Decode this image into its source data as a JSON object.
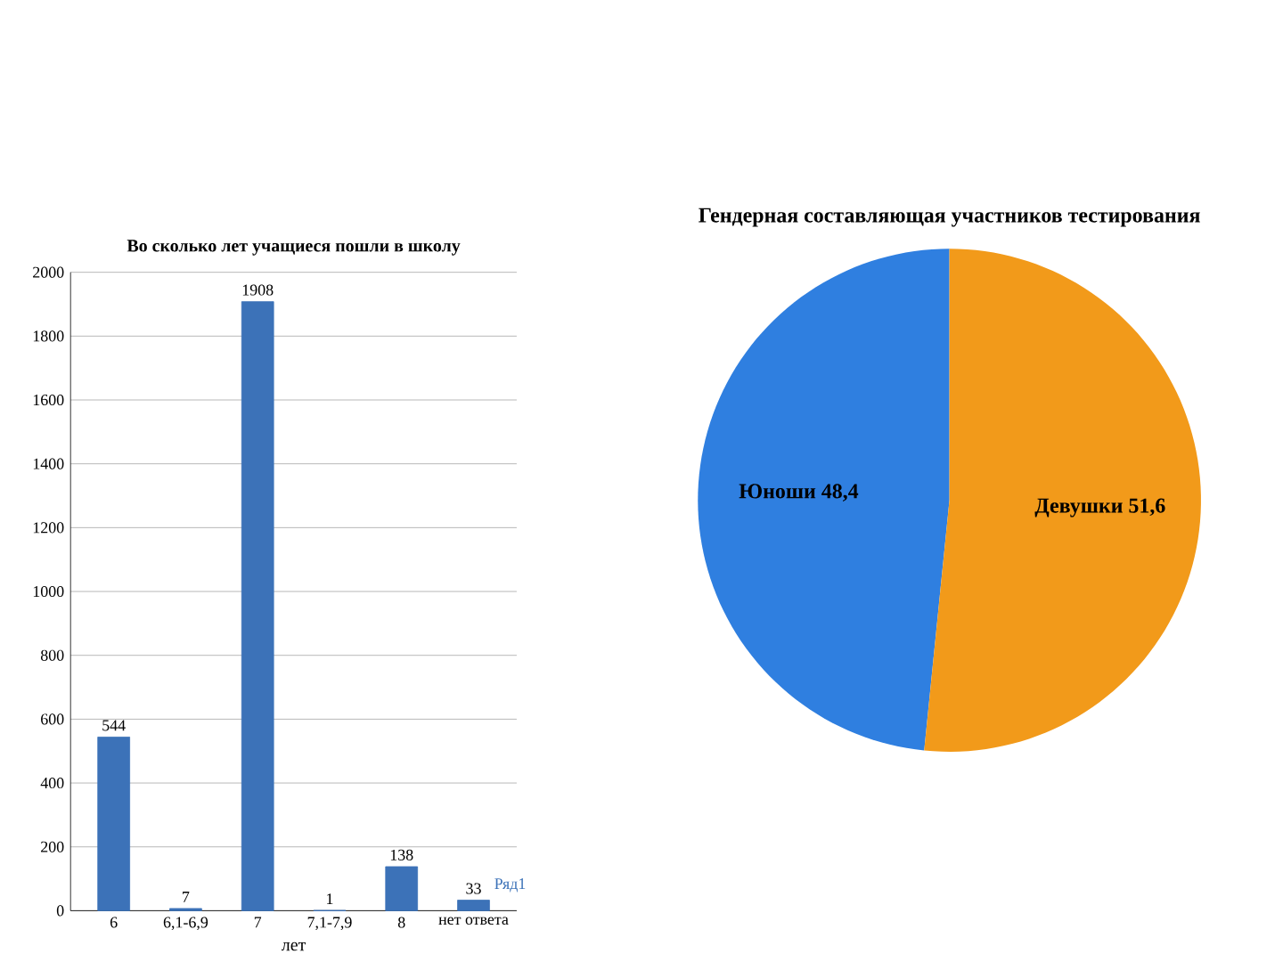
{
  "chart_data": [
    {
      "type": "bar",
      "title": "Во сколько лет учащиеся пошли в школу",
      "xlabel": "лет",
      "categories": [
        "6",
        "6,1-6,9",
        "7",
        "7,1-7,9",
        "8",
        "нет ответа"
      ],
      "series": [
        {
          "name": "Ряд1",
          "color": "#3c72b8",
          "values": [
            544,
            7,
            1908,
            1,
            138,
            33
          ]
        }
      ],
      "ylim": [
        0,
        2000
      ],
      "yticks": [
        0,
        200,
        400,
        600,
        800,
        1000,
        1200,
        1400,
        1600,
        1800,
        2000
      ],
      "grid": "y",
      "data_labels": true
    },
    {
      "type": "pie",
      "title": "Гендерная составляющая участников тестирования",
      "categories": [
        "Юноши",
        "Девушки"
      ],
      "values": [
        48.4,
        51.6
      ],
      "value_labels": [
        "48,4",
        "51,6"
      ],
      "colors": [
        "#2f7fe0",
        "#f29a1a"
      ]
    }
  ]
}
